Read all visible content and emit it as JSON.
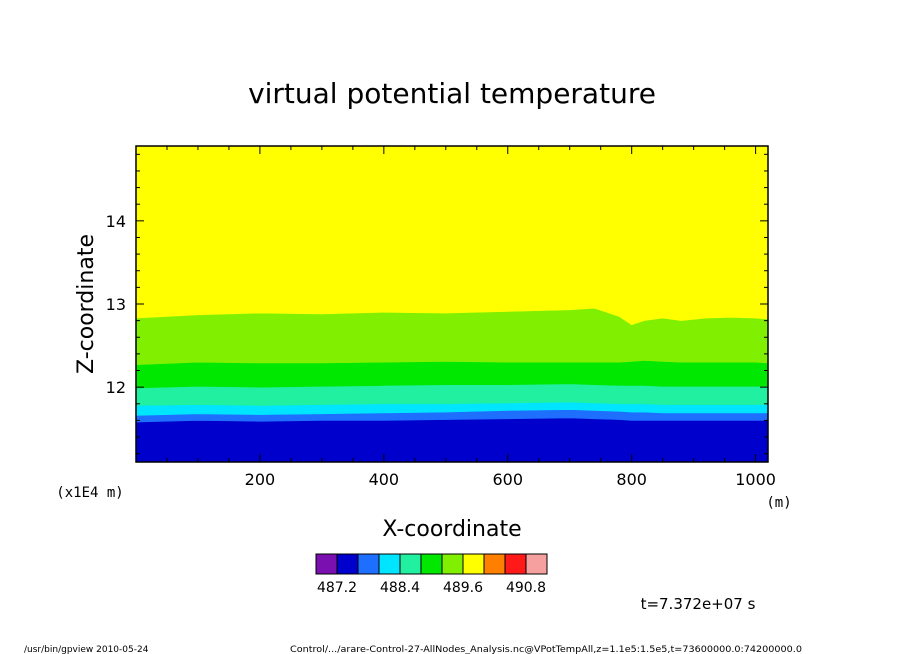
{
  "chart_data": {
    "type": "heatmap",
    "title": "virtual potential temperature",
    "xlabel": "X-coordinate",
    "ylabel": "Z-coordinate",
    "x_unit": "(m)",
    "y_scale_note": "(x1E4 m)",
    "xlim": [
      0,
      1020
    ],
    "ylim": [
      11.1,
      14.9
    ],
    "x_ticks": [
      200,
      400,
      600,
      800,
      1000
    ],
    "y_ticks": [
      12,
      13,
      14
    ],
    "colorbar": {
      "colors": [
        "#7a10b0",
        "#0000cd",
        "#1f6fff",
        "#00e5ff",
        "#20f0a0",
        "#00e800",
        "#80f000",
        "#ffff00",
        "#ff8000",
        "#ff1a1a",
        "#f6a0a0"
      ],
      "labels": [
        "487.2",
        "488.4",
        "489.6",
        "490.8"
      ]
    },
    "layers": [
      {
        "color": "#0000cd",
        "z_top": 11.6
      },
      {
        "color": "#1f6fff",
        "z_top": 11.68
      },
      {
        "color": "#00e5ff",
        "z_top": 11.78
      },
      {
        "color": "#20f0a0",
        "z_top": 12.0
      },
      {
        "color": "#00e800",
        "z_top": 12.28
      },
      {
        "color": "#80f000",
        "z_top": 12.84
      },
      {
        "color": "#ffff00",
        "z_top": 14.9
      }
    ],
    "boundary_x": [
      0,
      100,
      200,
      300,
      400,
      500,
      600,
      700,
      740,
      780,
      800,
      820,
      850,
      880,
      920,
      960,
      1000,
      1020
    ],
    "boundaries": [
      [
        11.58,
        11.6,
        11.59,
        11.6,
        11.6,
        11.61,
        11.62,
        11.63,
        11.62,
        11.61,
        11.6,
        11.6,
        11.6,
        11.6,
        11.6,
        11.6,
        11.6,
        11.6
      ],
      [
        11.66,
        11.68,
        11.67,
        11.68,
        11.69,
        11.7,
        11.72,
        11.73,
        11.72,
        11.71,
        11.7,
        11.7,
        11.69,
        11.69,
        11.69,
        11.69,
        11.69,
        11.69
      ],
      [
        11.78,
        11.79,
        11.78,
        11.79,
        11.8,
        11.8,
        11.81,
        11.82,
        11.81,
        11.8,
        11.8,
        11.8,
        11.79,
        11.79,
        11.79,
        11.79,
        11.79,
        11.79
      ],
      [
        11.99,
        12.01,
        12.0,
        12.01,
        12.02,
        12.03,
        12.03,
        12.04,
        12.03,
        12.02,
        12.02,
        12.02,
        12.01,
        12.01,
        12.01,
        12.01,
        12.01,
        12.01
      ],
      [
        12.27,
        12.3,
        12.29,
        12.29,
        12.3,
        12.31,
        12.3,
        12.3,
        12.3,
        12.3,
        12.31,
        12.32,
        12.31,
        12.3,
        12.3,
        12.3,
        12.3,
        12.29
      ],
      [
        12.83,
        12.87,
        12.89,
        12.88,
        12.9,
        12.89,
        12.91,
        12.93,
        12.95,
        12.85,
        12.75,
        12.8,
        12.83,
        12.8,
        12.83,
        12.84,
        12.83,
        12.82
      ]
    ]
  },
  "time_label": "t=7.372e+07 s",
  "footer_left": "/usr/bin/gpview  2010-05-24",
  "footer_right": "Control/.../arare-Control-27-AllNodes_Analysis.nc@VPotTempAll,z=1.1e5:1.5e5,t=73600000.0:74200000.0"
}
